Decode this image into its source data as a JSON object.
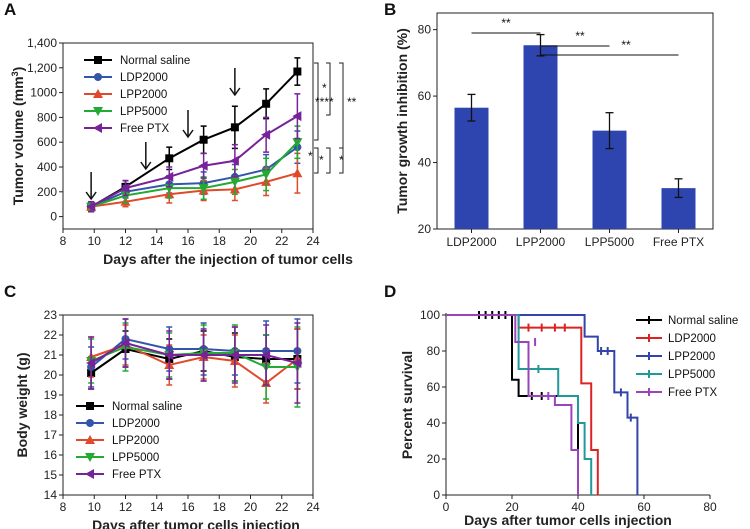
{
  "chart_data": [
    {
      "panel": "A",
      "type": "line",
      "xlabel": "Days after the injection of tumor cells",
      "ylabel": "Tumor volume (mm",
      "ylabel_sup": "3",
      "ylabel_close": ")",
      "xlim": [
        8,
        24
      ],
      "ylim": [
        -100,
        1400
      ],
      "xticks": [
        "8",
        "10",
        "12",
        "14",
        "16",
        "18",
        "20",
        "22",
        "24"
      ],
      "yticks": [
        "0",
        "200",
        "400",
        "600",
        "800",
        "1000",
        "1,200",
        "1,400"
      ],
      "injection_days": [
        9.8,
        13.3,
        16.0,
        19.0
      ],
      "x": [
        9.8,
        12.0,
        14.8,
        17.0,
        19.0,
        21.0,
        23.0
      ],
      "series": [
        {
          "name": "Normal saline",
          "color": "#000000",
          "marker": "square",
          "values": [
            80,
            240,
            470,
            620,
            720,
            910,
            1170
          ],
          "errors": [
            40,
            50,
            90,
            110,
            170,
            120,
            110
          ]
        },
        {
          "name": "LDP2000",
          "color": "#3355aa",
          "marker": "circle",
          "values": [
            80,
            200,
            260,
            270,
            320,
            380,
            560
          ],
          "errors": [
            30,
            50,
            70,
            90,
            100,
            120,
            130
          ]
        },
        {
          "name": "LPP2000",
          "color": "#e04a2a",
          "marker": "triangle-up",
          "values": [
            80,
            120,
            180,
            210,
            220,
            280,
            350
          ],
          "errors": [
            30,
            40,
            70,
            80,
            90,
            110,
            160
          ]
        },
        {
          "name": "LPP5000",
          "color": "#22aa33",
          "marker": "triangle-down",
          "values": [
            80,
            170,
            230,
            230,
            280,
            340,
            600
          ],
          "errors": [
            30,
            60,
            80,
            90,
            100,
            130,
            130
          ]
        },
        {
          "name": "Free PTX",
          "color": "#772299",
          "marker": "triangle-left",
          "values": [
            80,
            230,
            320,
            410,
            450,
            660,
            810
          ],
          "errors": [
            40,
            60,
            80,
            100,
            130,
            140,
            180
          ]
        }
      ],
      "significance": [
        "*",
        "****",
        "**",
        "*",
        "*",
        "*"
      ]
    },
    {
      "panel": "B",
      "type": "bar",
      "categories": [
        "LDP2000",
        "LPP2000",
        "LPP5000",
        "Free PTX"
      ],
      "values": [
        56.5,
        75.3,
        49.6,
        32.3
      ],
      "errors": [
        4.0,
        3.2,
        5.4,
        2.8
      ],
      "color": "#2e45b0",
      "ylabel": "Tumor growth inhibition (%)",
      "ylim": [
        20,
        85
      ],
      "yticks": [
        "20",
        "40",
        "60",
        "80"
      ],
      "significance": [
        "**",
        "**",
        "**"
      ]
    },
    {
      "panel": "C",
      "type": "line",
      "xlabel": "Days after tumor cells injection",
      "ylabel": "Body weight (g)",
      "xlim": [
        8,
        24
      ],
      "ylim": [
        14,
        23
      ],
      "xticks": [
        "8",
        "10",
        "12",
        "14",
        "16",
        "18",
        "20",
        "22",
        "24"
      ],
      "yticks": [
        "14",
        "15",
        "16",
        "17",
        "18",
        "19",
        "20",
        "21",
        "22",
        "23"
      ],
      "x": [
        9.8,
        12.0,
        14.8,
        17.0,
        19.0,
        21.0,
        23.0
      ],
      "series": [
        {
          "name": "Normal saline",
          "color": "#000000",
          "marker": "square",
          "values": [
            20.1,
            21.3,
            20.8,
            21.2,
            20.9,
            20.8,
            20.8
          ],
          "errors": [
            0.8,
            0.9,
            1.0,
            1.0,
            1.2,
            1.2,
            1.5
          ]
        },
        {
          "name": "LDP2000",
          "color": "#3355aa",
          "marker": "circle",
          "values": [
            20.4,
            21.8,
            21.3,
            21.3,
            21.2,
            21.2,
            21.2
          ],
          "errors": [
            1.0,
            1.0,
            1.1,
            1.3,
            1.2,
            1.5,
            1.6
          ]
        },
        {
          "name": "LPP2000",
          "color": "#e04a2a",
          "marker": "triangle-up",
          "values": [
            20.9,
            21.5,
            20.5,
            20.9,
            20.7,
            19.6,
            20.8
          ],
          "errors": [
            1.0,
            1.0,
            1.0,
            1.1,
            1.3,
            1.0,
            1.5
          ]
        },
        {
          "name": "LPP5000",
          "color": "#22aa33",
          "marker": "triangle-down",
          "values": [
            20.7,
            21.4,
            21.0,
            21.1,
            21.1,
            20.4,
            20.4
          ],
          "errors": [
            1.1,
            1.2,
            1.1,
            1.4,
            1.4,
            1.6,
            2.0
          ]
        },
        {
          "name": "Free PTX",
          "color": "#772299",
          "marker": "triangle-left",
          "values": [
            20.6,
            21.6,
            21.0,
            21.0,
            21.0,
            21.0,
            20.6
          ],
          "errors": [
            1.3,
            1.2,
            1.2,
            1.3,
            1.4,
            1.5,
            2.0
          ]
        }
      ]
    },
    {
      "panel": "D",
      "type": "line",
      "subtype": "survival-step",
      "xlabel": "Days after tumor cells injection",
      "ylabel": "Percent survival",
      "xlim": [
        0,
        80
      ],
      "ylim": [
        0,
        100
      ],
      "xticks": [
        "0",
        "20",
        "40",
        "60",
        "80"
      ],
      "yticks": [
        "0",
        "20",
        "40",
        "60",
        "80",
        "100"
      ],
      "series": [
        {
          "name": "Normal saline",
          "color": "#000000",
          "steps": [
            [
              0,
              100
            ],
            [
              20,
              100
            ],
            [
              20,
              64
            ],
            [
              22,
              64
            ],
            [
              22,
              55
            ],
            [
              40,
              55
            ],
            [
              40,
              0
            ]
          ],
          "censors": [
            [
              10,
              100
            ],
            [
              12,
              100
            ],
            [
              14,
              100
            ],
            [
              16,
              100
            ],
            [
              18,
              100
            ],
            [
              26,
              55
            ],
            [
              29,
              55
            ]
          ]
        },
        {
          "name": "LDP2000",
          "color": "#dd2222",
          "steps": [
            [
              0,
              100
            ],
            [
              22,
              100
            ],
            [
              22,
              93
            ],
            [
              41,
              93
            ],
            [
              41,
              62
            ],
            [
              44,
              62
            ],
            [
              44,
              25
            ],
            [
              46,
              25
            ],
            [
              46,
              0
            ]
          ],
          "censors": [
            [
              25,
              93
            ],
            [
              29,
              93
            ],
            [
              33,
              93
            ],
            [
              36,
              93
            ]
          ]
        },
        {
          "name": "LPP2000",
          "color": "#3344aa",
          "steps": [
            [
              0,
              100
            ],
            [
              42,
              100
            ],
            [
              42,
              88
            ],
            [
              46,
              88
            ],
            [
              46,
              80
            ],
            [
              51,
              80
            ],
            [
              51,
              57
            ],
            [
              55,
              57
            ],
            [
              55,
              43
            ],
            [
              58,
              43
            ],
            [
              58,
              0
            ]
          ],
          "censors": [
            [
              47,
              80
            ],
            [
              49,
              80
            ],
            [
              53,
              57
            ],
            [
              56,
              43
            ]
          ]
        },
        {
          "name": "LPP5000",
          "color": "#229999",
          "steps": [
            [
              0,
              100
            ],
            [
              22,
              100
            ],
            [
              22,
              70
            ],
            [
              34,
              70
            ],
            [
              34,
              55
            ],
            [
              40,
              55
            ],
            [
              40,
              40
            ],
            [
              42,
              40
            ],
            [
              42,
              20
            ],
            [
              44,
              20
            ],
            [
              44,
              0
            ]
          ],
          "censors": [
            [
              28,
              70
            ]
          ]
        },
        {
          "name": "Free PTX",
          "color": "#9944bb",
          "steps": [
            [
              0,
              100
            ],
            [
              21,
              100
            ],
            [
              21,
              85
            ],
            [
              25,
              85
            ],
            [
              25,
              55
            ],
            [
              33,
              55
            ],
            [
              33,
              50
            ],
            [
              38,
              50
            ],
            [
              38,
              25
            ],
            [
              40,
              25
            ],
            [
              40,
              0
            ]
          ],
          "censors": [
            [
              27,
              85
            ],
            [
              31,
              55
            ]
          ]
        }
      ]
    }
  ]
}
